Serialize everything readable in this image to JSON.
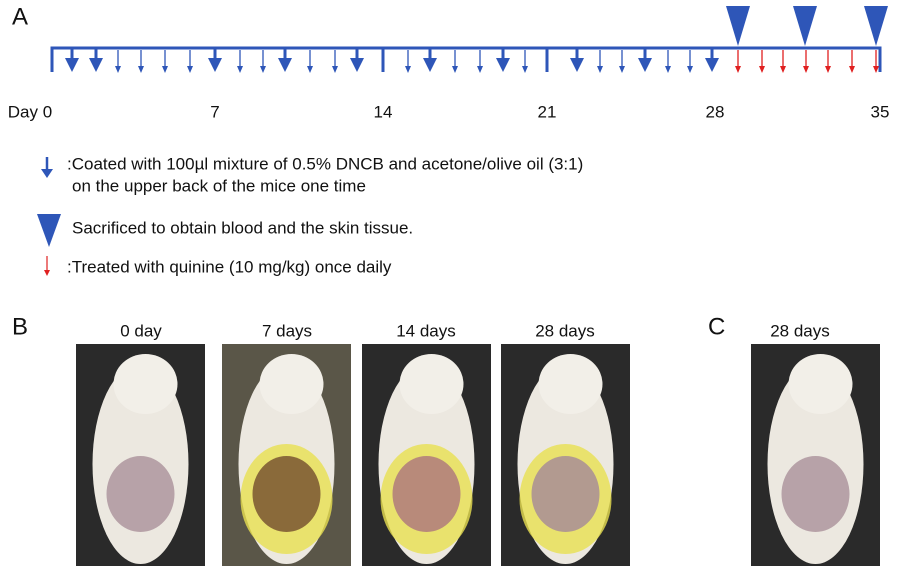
{
  "panel_a": {
    "label": "A",
    "day_labels": [
      "Day 0",
      "7",
      "14",
      "21",
      "28",
      "35"
    ],
    "legend": [
      {
        "lines": [
          ":Coated with 100µl  mixture of 0.5% DNCB and acetone/olive oil (3:1)",
          "on the upper back of the mice one time"
        ]
      },
      {
        "lines": [
          "Sacrificed to obtain blood and the skin tissue."
        ]
      },
      {
        "lines": [
          ":Treated with quinine (10 mg/kg) once daily"
        ]
      }
    ]
  },
  "panel_b": {
    "label": "B",
    "captions": [
      "0 day",
      "7 days",
      "14 days",
      "28 days"
    ]
  },
  "panel_c": {
    "label": "C",
    "caption": "28 days"
  }
}
